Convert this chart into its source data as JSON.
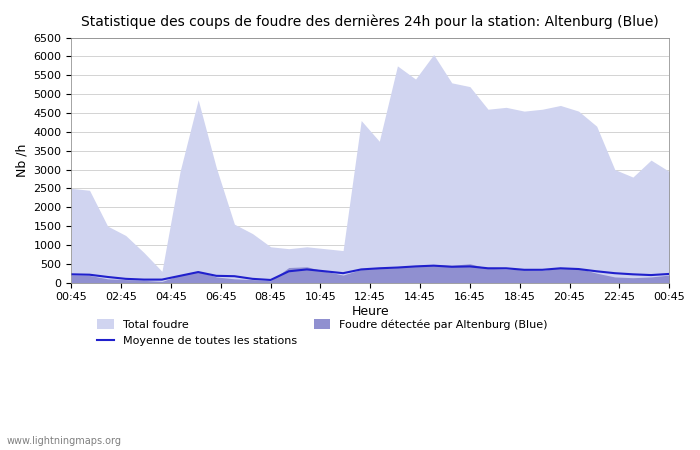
{
  "title": "Statistique des coups de foudre des dernières 24h pour la station: Altenburg (Blue)",
  "xlabel": "Heure",
  "ylabel": "Nb /h",
  "ylim": [
    0,
    6500
  ],
  "yticks": [
    0,
    500,
    1000,
    1500,
    2000,
    2500,
    3000,
    3500,
    4000,
    4500,
    5000,
    5500,
    6000,
    6500
  ],
  "xtick_labels": [
    "00:45",
    "02:45",
    "04:45",
    "06:45",
    "08:45",
    "10:45",
    "12:45",
    "14:45",
    "16:45",
    "18:45",
    "20:45",
    "22:45",
    "00:45"
  ],
  "watermark": "www.lightningmaps.org",
  "color_total": "#d0d4f0",
  "color_detected": "#9090d0",
  "color_moyenne": "#2020cc",
  "total_foudre": [
    2500,
    2450,
    1500,
    1250,
    800,
    300,
    2950,
    4850,
    3050,
    1550,
    1300,
    950,
    900,
    950,
    900,
    850,
    4300,
    3750,
    5750,
    5400,
    6050,
    5300,
    5200,
    4600,
    4650,
    4550,
    4600,
    4700,
    4550,
    4150,
    3000,
    2800,
    3250,
    2950
  ],
  "detected": [
    200,
    190,
    100,
    80,
    60,
    30,
    200,
    300,
    150,
    100,
    80,
    50,
    400,
    420,
    300,
    200,
    350,
    380,
    400,
    450,
    480,
    460,
    500,
    380,
    360,
    340,
    320,
    400,
    380,
    250,
    150,
    130,
    150,
    200
  ],
  "moyenne": [
    220,
    210,
    150,
    100,
    80,
    80,
    180,
    280,
    180,
    170,
    100,
    70,
    300,
    350,
    300,
    250,
    350,
    380,
    400,
    430,
    450,
    420,
    430,
    380,
    380,
    340,
    340,
    380,
    360,
    300,
    250,
    220,
    200,
    230
  ],
  "n_points": 34
}
